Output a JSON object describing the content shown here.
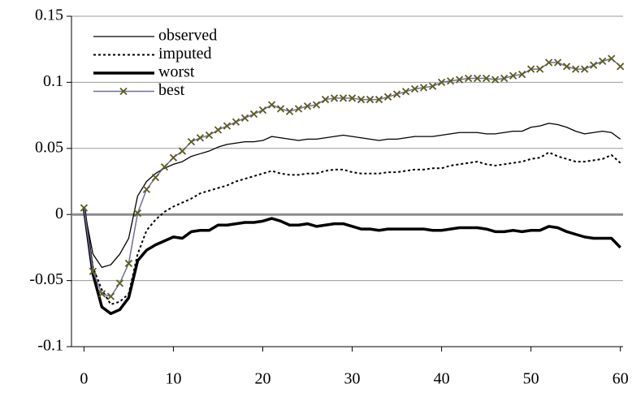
{
  "chart_data": {
    "type": "line",
    "x": [
      0,
      1,
      2,
      3,
      4,
      5,
      6,
      7,
      8,
      9,
      10,
      11,
      12,
      13,
      14,
      15,
      16,
      17,
      18,
      19,
      20,
      21,
      22,
      23,
      24,
      25,
      26,
      27,
      28,
      29,
      30,
      31,
      32,
      33,
      34,
      35,
      36,
      37,
      38,
      39,
      40,
      41,
      42,
      43,
      44,
      45,
      46,
      47,
      48,
      49,
      50,
      51,
      52,
      53,
      54,
      55,
      56,
      57,
      58,
      59,
      60
    ],
    "xlim": [
      -1.4,
      60.3
    ],
    "xticks": [
      0,
      10,
      20,
      30,
      40,
      50,
      60
    ],
    "ylim": [
      -0.1,
      0.15
    ],
    "yticks": [
      -0.1,
      -0.05,
      0,
      0.05,
      0.1,
      0.15
    ],
    "grid": true,
    "zero_line_color": "#8c8c8c",
    "legend": "upper left",
    "series": [
      {
        "name": "observed",
        "color": "#000000",
        "line_width": 1.3,
        "dash": "solid",
        "values": [
          0.005,
          -0.03,
          -0.04,
          -0.038,
          -0.03,
          -0.018,
          0.014,
          0.025,
          0.031,
          0.035,
          0.038,
          0.04,
          0.044,
          0.046,
          0.048,
          0.051,
          0.053,
          0.054,
          0.055,
          0.055,
          0.056,
          0.059,
          0.058,
          0.057,
          0.056,
          0.057,
          0.057,
          0.058,
          0.059,
          0.06,
          0.059,
          0.058,
          0.057,
          0.056,
          0.057,
          0.057,
          0.058,
          0.059,
          0.059,
          0.059,
          0.06,
          0.061,
          0.062,
          0.062,
          0.062,
          0.061,
          0.061,
          0.062,
          0.063,
          0.063,
          0.066,
          0.067,
          0.069,
          0.068,
          0.066,
          0.063,
          0.061,
          0.062,
          0.063,
          0.062,
          0.057
        ]
      },
      {
        "name": "imputed",
        "color": "#000000",
        "line_width": 2,
        "dash": "dotted",
        "values": [
          0.005,
          -0.04,
          -0.057,
          -0.068,
          -0.066,
          -0.06,
          -0.03,
          -0.012,
          -0.004,
          0.002,
          0.006,
          0.009,
          0.012,
          0.016,
          0.018,
          0.02,
          0.022,
          0.025,
          0.027,
          0.029,
          0.031,
          0.033,
          0.031,
          0.03,
          0.03,
          0.031,
          0.031,
          0.033,
          0.034,
          0.034,
          0.032,
          0.031,
          0.031,
          0.031,
          0.032,
          0.032,
          0.033,
          0.034,
          0.034,
          0.035,
          0.035,
          0.037,
          0.038,
          0.039,
          0.04,
          0.038,
          0.037,
          0.038,
          0.039,
          0.04,
          0.042,
          0.043,
          0.047,
          0.044,
          0.042,
          0.04,
          0.04,
          0.041,
          0.042,
          0.045,
          0.039
        ]
      },
      {
        "name": "worst",
        "color": "#000000",
        "line_width": 3.5,
        "dash": "solid",
        "values": [
          0.005,
          -0.045,
          -0.07,
          -0.075,
          -0.072,
          -0.063,
          -0.035,
          -0.027,
          -0.023,
          -0.02,
          -0.017,
          -0.018,
          -0.013,
          -0.012,
          -0.012,
          -0.008,
          -0.008,
          -0.007,
          -0.006,
          -0.006,
          -0.005,
          -0.003,
          -0.005,
          -0.008,
          -0.008,
          -0.007,
          -0.009,
          -0.008,
          -0.007,
          -0.007,
          -0.009,
          -0.011,
          -0.011,
          -0.012,
          -0.011,
          -0.011,
          -0.011,
          -0.011,
          -0.011,
          -0.012,
          -0.012,
          -0.011,
          -0.01,
          -0.01,
          -0.01,
          -0.011,
          -0.013,
          -0.013,
          -0.012,
          -0.013,
          -0.012,
          -0.012,
          -0.009,
          -0.01,
          -0.013,
          -0.015,
          -0.017,
          -0.018,
          -0.018,
          -0.018,
          -0.025
        ]
      },
      {
        "name": "best",
        "color": "#6e6e9e",
        "line_width": 1.5,
        "dash": "solid",
        "marker": "x",
        "marker_color": "#5c5c1e",
        "values": [
          0.005,
          -0.043,
          -0.06,
          -0.062,
          -0.052,
          -0.037,
          0.001,
          0.019,
          0.028,
          0.036,
          0.043,
          0.048,
          0.055,
          0.058,
          0.06,
          0.064,
          0.067,
          0.07,
          0.073,
          0.076,
          0.079,
          0.083,
          0.08,
          0.078,
          0.08,
          0.082,
          0.083,
          0.087,
          0.088,
          0.088,
          0.088,
          0.087,
          0.087,
          0.087,
          0.089,
          0.091,
          0.093,
          0.095,
          0.096,
          0.097,
          0.1,
          0.101,
          0.102,
          0.103,
          0.103,
          0.103,
          0.102,
          0.103,
          0.105,
          0.106,
          0.11,
          0.11,
          0.115,
          0.115,
          0.112,
          0.11,
          0.11,
          0.113,
          0.116,
          0.118,
          0.112
        ]
      }
    ]
  }
}
